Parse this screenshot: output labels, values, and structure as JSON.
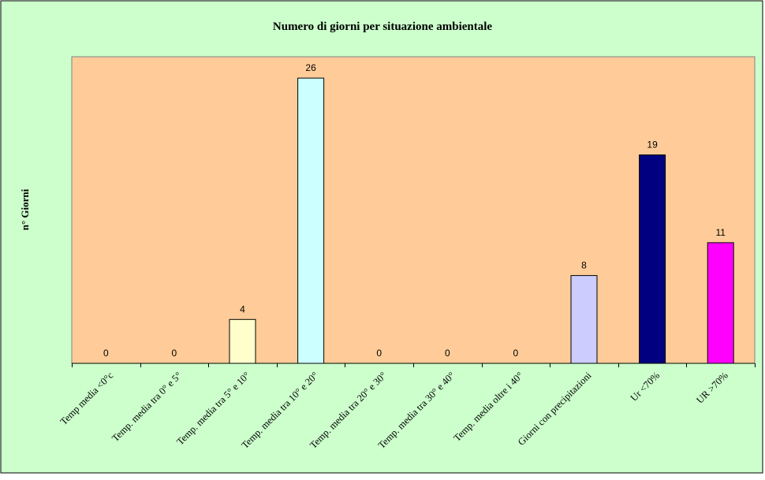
{
  "chart_data": {
    "type": "bar",
    "title": "Numero di giorni per situazione ambientale",
    "xlabel": "",
    "ylabel": "n° Giorni",
    "ylim": [
      0,
      28
    ],
    "grid": false,
    "legend": "none",
    "categories": [
      "Temp media <0°c",
      "Temp. media tra 0° e 5°",
      "Temp. media tra 5° e 10°",
      "Temp. media tra 10° e 20°",
      "Temp. media tra 20° e 30°",
      "Temp. media tra 30° e 40°",
      "Temp. media oltre i 40°",
      "Giorni con precipitazioni",
      "Ur <70%",
      "UR >70%"
    ],
    "values": [
      0,
      0,
      4,
      26,
      0,
      0,
      0,
      8,
      19,
      11
    ],
    "bar_colors": [
      "#ffffcc",
      "#ffffcc",
      "#ffffcc",
      "#ccffff",
      "#ccffff",
      "#ccffff",
      "#ccffff",
      "#ccccff",
      "#000080",
      "#ff00ff"
    ],
    "colors": {
      "chart_area": "#ccffcc",
      "plot_area": "#ffcc99",
      "bar_outline": "#000000"
    }
  }
}
